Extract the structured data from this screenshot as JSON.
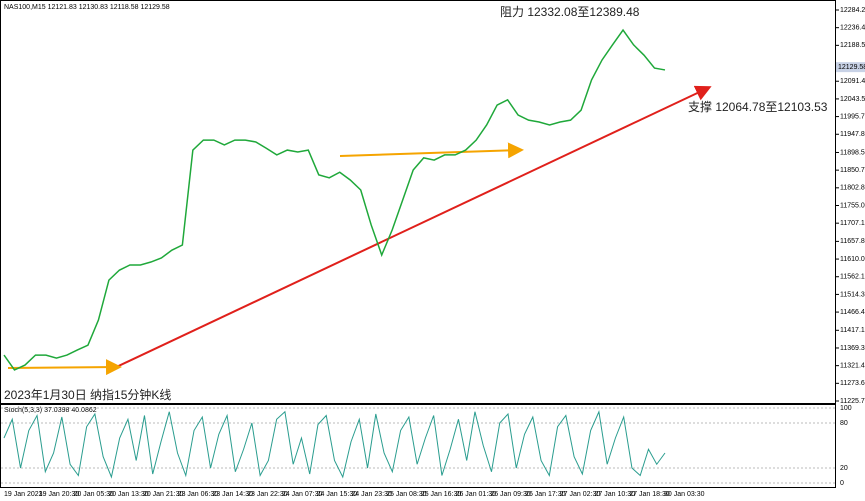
{
  "chart_data": {
    "type": "line",
    "title": "NAS100,M15  12121.83 12130.83 12118.58 12129.58",
    "annotations": [
      "阻力 12332.08至12389.48",
      "支撑 12064.78至12103.53",
      "2023年1月30日 纳指15分钟K线"
    ],
    "current_price": {
      "value": 12129.58,
      "label": "12129.58"
    },
    "series": [
      {
        "name": "NAS100",
        "color": "#1fa83a",
        "values": [
          11350,
          11310,
          11323,
          11350,
          11350,
          11342,
          11350,
          11364,
          11377,
          11445,
          11553,
          11580,
          11594,
          11594,
          11602,
          11613,
          11634,
          11648,
          11905,
          11932,
          11932,
          11919,
          11932,
          11932,
          11927,
          11910,
          11892,
          11905,
          11900,
          11905,
          11838,
          11830,
          11845,
          11824,
          11797,
          11702,
          11621,
          11689,
          11770,
          11851,
          11884,
          11878,
          11892,
          11892,
          11905,
          11932,
          11973,
          12027,
          12041,
          12000,
          11986,
          11981,
          11973,
          11981,
          11986,
          12013,
          12095,
          12149,
          12190,
          12230,
          12190,
          12162,
          12127,
          12122
        ]
      }
    ],
    "ylim": [
      11225.75,
      12284.25
    ],
    "yticks": [
      {
        "value": 11225.75,
        "label": "11225.75"
      },
      {
        "value": 11273.6,
        "label": "11273.60"
      },
      {
        "value": 11321.45,
        "label": "11321.45"
      },
      {
        "value": 11369.3,
        "label": "11369.30"
      },
      {
        "value": 11417.15,
        "label": "11417.15"
      },
      {
        "value": 11466.45,
        "label": "11466.45"
      },
      {
        "value": 11514.3,
        "label": "11514.30"
      },
      {
        "value": 11562.15,
        "label": "11562.15"
      },
      {
        "value": 11610,
        "label": "11610.00"
      },
      {
        "value": 11657.85,
        "label": "11657.85"
      },
      {
        "value": 11707.15,
        "label": "11707.15"
      },
      {
        "value": 11755,
        "label": "11755.00"
      },
      {
        "value": 11802.85,
        "label": "11802.85"
      },
      {
        "value": 11850.7,
        "label": "11850.70"
      },
      {
        "value": 11898.55,
        "label": "11898.55"
      },
      {
        "value": 11947.85,
        "label": "11947.85"
      },
      {
        "value": 11995.7,
        "label": "11995.70"
      },
      {
        "value": 12043.55,
        "label": "12043.55"
      },
      {
        "value": 12091.4,
        "label": "12091.40"
      },
      {
        "value": 12188.55,
        "label": "12188.55"
      },
      {
        "value": 12236.4,
        "label": "12236.40"
      },
      {
        "value": 12284.25,
        "label": "12284.25"
      }
    ],
    "x_labels": [
      "19 Jan 2023",
      "19 Jan 20:30",
      "20 Jan 05:30",
      "20 Jan 13:30",
      "20 Jan 21:30",
      "23 Jan 06:30",
      "23 Jan 14:30",
      "23 Jan 22:30",
      "24 Jan 07:30",
      "24 Jan 15:30",
      "24 Jan 23:30",
      "25 Jan 08:30",
      "25 Jan 16:30",
      "26 Jan 01:30",
      "26 Jan 09:30",
      "26 Jan 17:30",
      "27 Jan 02:30",
      "27 Jan 10:30",
      "27 Jan 18:30",
      "30 Jan 03:30"
    ],
    "oscillator": {
      "title": "Stoch(5,3,3) 37.0398 40.0862",
      "color": "#2a9d8f",
      "ylim": [
        0,
        100
      ],
      "yticks": [
        0,
        20,
        80,
        100
      ],
      "values": [
        60,
        85,
        20,
        70,
        90,
        15,
        40,
        88,
        25,
        10,
        75,
        92,
        35,
        8,
        60,
        85,
        30,
        90,
        12,
        55,
        95,
        40,
        10,
        70,
        88,
        20,
        65,
        90,
        15,
        45,
        80,
        10,
        30,
        85,
        95,
        25,
        60,
        12,
        78,
        90,
        30,
        8,
        55,
        85,
        20,
        92,
        40,
        15,
        70,
        88,
        25,
        60,
        90,
        10,
        45,
        85,
        30,
        95,
        50,
        15,
        80,
        92,
        20,
        65,
        88,
        30,
        10,
        75,
        90,
        35,
        12,
        70,
        95,
        25,
        60,
        88,
        20,
        10,
        45,
        25,
        40
      ]
    }
  }
}
